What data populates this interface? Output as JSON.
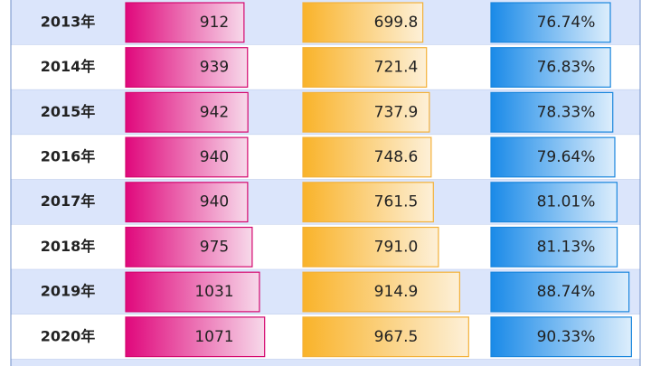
{
  "table": {
    "rows": [
      [
        "2013年",
        "912",
        "699.8",
        "76.74%"
      ],
      [
        "2014年",
        "939",
        "721.4",
        "76.83%"
      ],
      [
        "2015年",
        "942",
        "737.9",
        "78.33%"
      ],
      [
        "2016年",
        "940",
        "748.6",
        "79.64%"
      ],
      [
        "2017年",
        "940",
        "761.5",
        "81.01%"
      ],
      [
        "2018年",
        "975",
        "791.0",
        "81.13%"
      ],
      [
        "2019年",
        "1031",
        "914.9",
        "88.74%"
      ],
      [
        "2020年",
        "1071",
        "967.5",
        "90.33%"
      ]
    ]
  }
}
